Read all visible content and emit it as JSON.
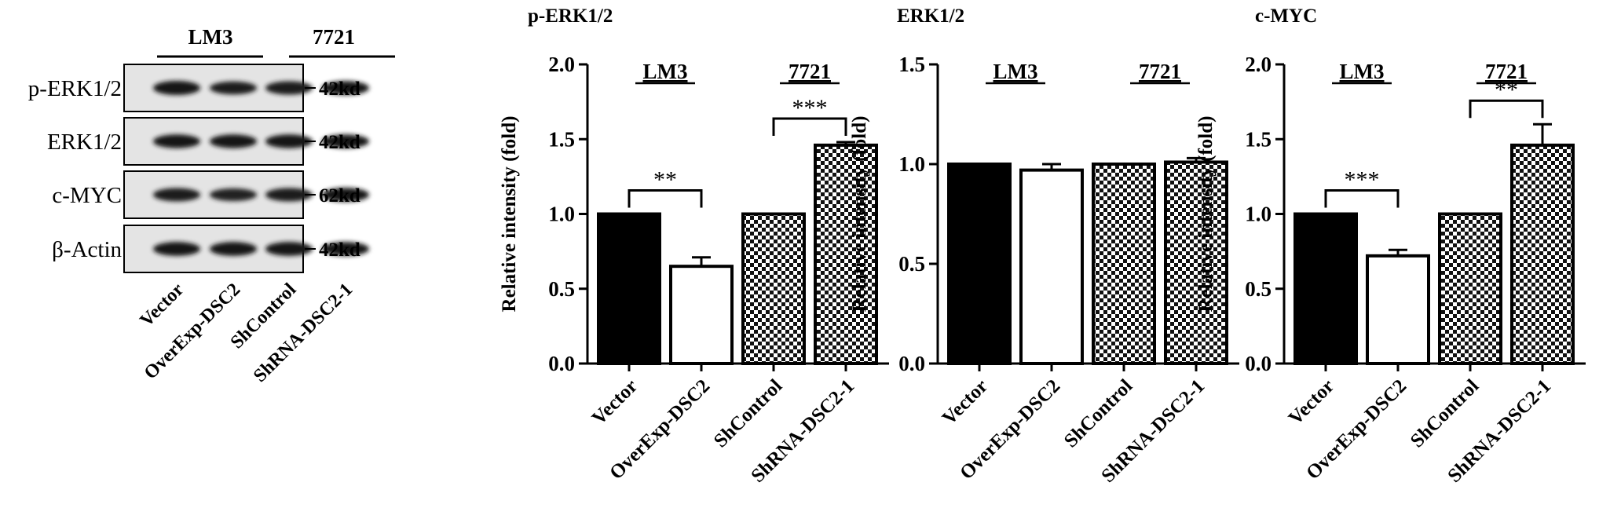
{
  "blot": {
    "groups": [
      "LM3",
      "7721"
    ],
    "rows": [
      {
        "label": "p-ERK1/2",
        "size": "42kd"
      },
      {
        "label": "ERK1/2",
        "size": "42kd"
      },
      {
        "label": "c-MYC",
        "size": "62kd"
      },
      {
        "label": "β-Actin",
        "size": "42kd"
      }
    ],
    "lanes": [
      "Vector",
      "OverExp-DSC2",
      "ShControl",
      "ShRNA-DSC2-1"
    ]
  },
  "chart_data": [
    {
      "type": "bar",
      "title": "p-ERK1/2",
      "ylabel": "Relative intensity (fold)",
      "xlabel": "",
      "categories": [
        "Vector",
        "OverExp-DSC2",
        "ShControl",
        "ShRNA-DSC2-1"
      ],
      "values": [
        1.0,
        0.65,
        1.0,
        1.46
      ],
      "errors": [
        0,
        0.06,
        0,
        0.02
      ],
      "fills": [
        "solid",
        "white",
        "checker",
        "checker"
      ],
      "ylim": [
        0,
        2.0
      ],
      "yticks": [
        "0.0",
        "0.5",
        "1.0",
        "1.5",
        "2.0"
      ],
      "group_labels": [
        "LM3",
        "7721"
      ],
      "significance": [
        {
          "from": 0,
          "to": 1,
          "label": "**"
        },
        {
          "from": 2,
          "to": 3,
          "label": "***"
        }
      ]
    },
    {
      "type": "bar",
      "title": "ERK1/2",
      "ylabel": "Relative intensity (fold)",
      "xlabel": "",
      "categories": [
        "Vector",
        "OverExp-DSC2",
        "ShControl",
        "ShRNA-DSC2-1"
      ],
      "values": [
        1.0,
        0.97,
        1.0,
        1.01
      ],
      "errors": [
        0,
        0.03,
        0,
        0.02
      ],
      "fills": [
        "solid",
        "white",
        "checker",
        "checker"
      ],
      "ylim": [
        0,
        1.5
      ],
      "yticks": [
        "0.0",
        "0.5",
        "1.0",
        "1.5"
      ],
      "group_labels": [
        "LM3",
        "7721"
      ],
      "significance": []
    },
    {
      "type": "bar",
      "title": "c-MYC",
      "ylabel": "Relative intensity (fold)",
      "xlabel": "",
      "categories": [
        "Vector",
        "OverExp-DSC2",
        "ShControl",
        "ShRNA-DSC2-1"
      ],
      "values": [
        1.0,
        0.72,
        1.0,
        1.46
      ],
      "errors": [
        0,
        0.04,
        0,
        0.14
      ],
      "fills": [
        "solid",
        "white",
        "checker",
        "checker"
      ],
      "ylim": [
        0,
        2.0
      ],
      "yticks": [
        "0.0",
        "0.5",
        "1.0",
        "1.5",
        "2.0"
      ],
      "group_labels": [
        "LM3",
        "7721"
      ],
      "significance": [
        {
          "from": 0,
          "to": 1,
          "label": "***"
        },
        {
          "from": 2,
          "to": 3,
          "label": "**"
        }
      ]
    }
  ]
}
